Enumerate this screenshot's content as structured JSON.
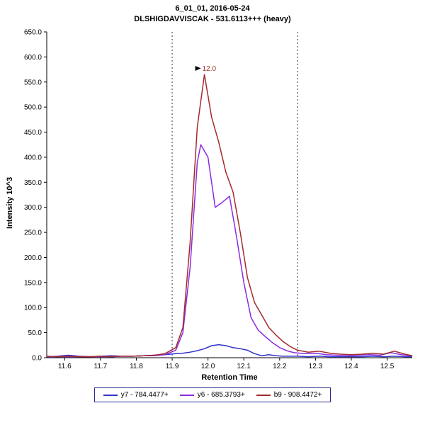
{
  "chart_data": {
    "type": "line",
    "title": "6_01_01, 2016-05-24",
    "subtitle": "DLSHIGDAVVISCAK - 531.6113+++ (heavy)",
    "xlabel": "Retention Time",
    "ylabel": "Intensity 10^3",
    "xlim": [
      11.55,
      12.57
    ],
    "ylim": [
      0,
      650
    ],
    "grid": false,
    "legend_position": "bottom",
    "x_ticks": [
      11.6,
      11.7,
      11.8,
      11.9,
      12.0,
      12.1,
      12.2,
      12.3,
      12.4,
      12.5
    ],
    "x_tick_labels": [
      "11.6",
      "11.7",
      "11.8",
      "11.9",
      "12.0",
      "12.1",
      "12.2",
      "12.3",
      "12.4",
      "12.5"
    ],
    "y_ticks": [
      0,
      50,
      100,
      150,
      200,
      250,
      300,
      350,
      400,
      450,
      500,
      550,
      600,
      650
    ],
    "y_tick_labels": [
      "0.0",
      "50.0",
      "100.0",
      "150.0",
      "200.0",
      "250.0",
      "300.0",
      "350.0",
      "400.0",
      "450.0",
      "500.0",
      "550.0",
      "600.0",
      "650.0"
    ],
    "integration_boundaries": [
      11.9,
      12.25
    ],
    "peak_annotation": {
      "x": 11.99,
      "y": 568,
      "label": "12.0",
      "color": "#a0342a"
    },
    "series": [
      {
        "id": "y7",
        "name": "y7 - 784.4477+",
        "color": "#3333cc",
        "points": [
          [
            11.55,
            2
          ],
          [
            11.58,
            3
          ],
          [
            11.61,
            5
          ],
          [
            11.64,
            3
          ],
          [
            11.67,
            2
          ],
          [
            11.7,
            3
          ],
          [
            11.73,
            4
          ],
          [
            11.76,
            3
          ],
          [
            11.79,
            3
          ],
          [
            11.82,
            4
          ],
          [
            11.85,
            5
          ],
          [
            11.88,
            6
          ],
          [
            11.91,
            8
          ],
          [
            11.93,
            9
          ],
          [
            11.95,
            11
          ],
          [
            11.97,
            14
          ],
          [
            11.99,
            18
          ],
          [
            12.01,
            24
          ],
          [
            12.03,
            26
          ],
          [
            12.05,
            24
          ],
          [
            12.07,
            20
          ],
          [
            12.09,
            18
          ],
          [
            12.11,
            15
          ],
          [
            12.13,
            8
          ],
          [
            12.15,
            4
          ],
          [
            12.17,
            6
          ],
          [
            12.19,
            4
          ],
          [
            12.21,
            3
          ],
          [
            12.23,
            3
          ],
          [
            12.25,
            3
          ],
          [
            12.28,
            2
          ],
          [
            12.31,
            3
          ],
          [
            12.34,
            2
          ],
          [
            12.37,
            2
          ],
          [
            12.4,
            2
          ],
          [
            12.43,
            2
          ],
          [
            12.46,
            3
          ],
          [
            12.49,
            2
          ],
          [
            12.52,
            3
          ],
          [
            12.55,
            2
          ],
          [
            12.57,
            2
          ]
        ]
      },
      {
        "id": "y6",
        "name": "y6 - 685.3793+",
        "color": "#8a2be2",
        "points": [
          [
            11.55,
            2
          ],
          [
            11.58,
            2
          ],
          [
            11.61,
            2
          ],
          [
            11.64,
            2
          ],
          [
            11.67,
            2
          ],
          [
            11.7,
            2
          ],
          [
            11.73,
            2
          ],
          [
            11.76,
            3
          ],
          [
            11.79,
            3
          ],
          [
            11.82,
            4
          ],
          [
            11.85,
            4
          ],
          [
            11.88,
            6
          ],
          [
            11.91,
            15
          ],
          [
            11.93,
            50
          ],
          [
            11.95,
            180
          ],
          [
            11.97,
            390
          ],
          [
            11.98,
            425
          ],
          [
            12.0,
            400
          ],
          [
            12.02,
            300
          ],
          [
            12.04,
            310
          ],
          [
            12.06,
            322
          ],
          [
            12.08,
            240
          ],
          [
            12.1,
            150
          ],
          [
            12.12,
            80
          ],
          [
            12.14,
            55
          ],
          [
            12.16,
            42
          ],
          [
            12.18,
            30
          ],
          [
            12.2,
            20
          ],
          [
            12.22,
            14
          ],
          [
            12.24,
            10
          ],
          [
            12.27,
            8
          ],
          [
            12.3,
            9
          ],
          [
            12.33,
            6
          ],
          [
            12.36,
            5
          ],
          [
            12.39,
            4
          ],
          [
            12.42,
            5
          ],
          [
            12.45,
            6
          ],
          [
            12.48,
            5
          ],
          [
            12.51,
            10
          ],
          [
            12.54,
            6
          ],
          [
            12.57,
            3
          ]
        ]
      },
      {
        "id": "b9",
        "name": "b9 - 908.4472+",
        "color": "#a52a2a",
        "points": [
          [
            11.55,
            3
          ],
          [
            11.58,
            2
          ],
          [
            11.61,
            3
          ],
          [
            11.64,
            2
          ],
          [
            11.67,
            2
          ],
          [
            11.7,
            3
          ],
          [
            11.73,
            2
          ],
          [
            11.76,
            3
          ],
          [
            11.79,
            3
          ],
          [
            11.82,
            4
          ],
          [
            11.85,
            5
          ],
          [
            11.88,
            8
          ],
          [
            11.91,
            20
          ],
          [
            11.93,
            60
          ],
          [
            11.95,
            230
          ],
          [
            11.97,
            460
          ],
          [
            11.99,
            565
          ],
          [
            12.01,
            480
          ],
          [
            12.03,
            430
          ],
          [
            12.05,
            370
          ],
          [
            12.07,
            330
          ],
          [
            12.09,
            250
          ],
          [
            12.11,
            160
          ],
          [
            12.13,
            110
          ],
          [
            12.15,
            85
          ],
          [
            12.17,
            60
          ],
          [
            12.19,
            45
          ],
          [
            12.21,
            32
          ],
          [
            12.23,
            22
          ],
          [
            12.25,
            15
          ],
          [
            12.28,
            11
          ],
          [
            12.31,
            13
          ],
          [
            12.34,
            9
          ],
          [
            12.37,
            7
          ],
          [
            12.4,
            6
          ],
          [
            12.43,
            7
          ],
          [
            12.46,
            9
          ],
          [
            12.49,
            7
          ],
          [
            12.52,
            13
          ],
          [
            12.55,
            7
          ],
          [
            12.57,
            4
          ]
        ]
      }
    ]
  },
  "legend": {
    "border_color": "#2a2a8f"
  }
}
